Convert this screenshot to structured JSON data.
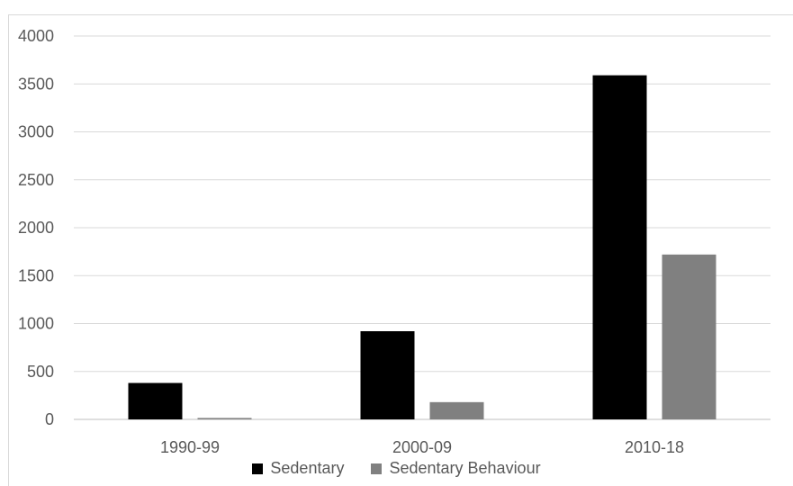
{
  "chart_data": {
    "type": "bar",
    "title": "",
    "xlabel": "",
    "ylabel": "",
    "categories": [
      "1990-99",
      "2000-09",
      "2010-18"
    ],
    "series": [
      {
        "name": "Sedentary",
        "values": [
          380,
          920,
          3590
        ],
        "color": "#000000"
      },
      {
        "name": "Sedentary Behaviour",
        "values": [
          15,
          180,
          1720
        ],
        "color": "#808080"
      }
    ],
    "ylim": [
      0,
      4000
    ],
    "yticks": [
      "0",
      "500",
      "1000",
      "1500",
      "2000",
      "2500",
      "3000",
      "3500",
      "4000"
    ],
    "grid": true,
    "legend_position": "bottom"
  }
}
